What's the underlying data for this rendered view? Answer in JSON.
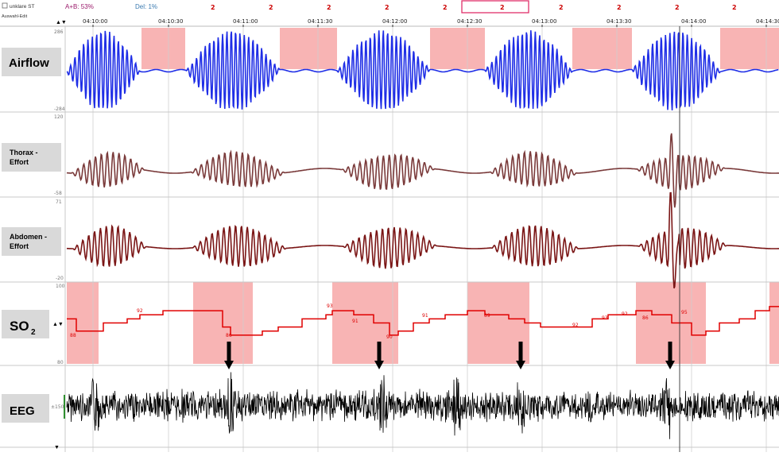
{
  "header": {
    "checkbox_label": "unklare ST",
    "edit_label": "Auswahl-Edit",
    "nav_arrows": "▲▼",
    "ab_stat": "A+B: 53%",
    "del_stat": "Del: 1%",
    "scores": [
      "2",
      "2",
      "2",
      "2",
      "2",
      "2",
      "2",
      "2",
      "2",
      "2",
      "2"
    ]
  },
  "time_axis": {
    "ticks": [
      "04:10:00",
      "04:10:30",
      "04:11:00",
      "04:11:30",
      "04:12:00",
      "04:12:30",
      "04:13:00",
      "04:13:30",
      "04:14:00",
      "04:14:30"
    ]
  },
  "channels": {
    "airflow": {
      "label": "Airflow",
      "scale_top": "286",
      "scale_bottom": "-284",
      "color": "#1f2ee6"
    },
    "thorax": {
      "label_line1": "Thorax -",
      "label_line2": "Effort",
      "scale_top": "120",
      "scale_bottom": "-58",
      "color": "#7a3a3a"
    },
    "abdomen": {
      "label_line1": "Abdomen -",
      "label_line2": "Effort",
      "scale_top": "71",
      "scale_bottom": "-20",
      "color": "#7a1515"
    },
    "so2": {
      "label": "SO",
      "label_sub": "2",
      "scale_top": "100",
      "scale_bottom": "80",
      "arrows": "▲▼",
      "color": "#e00000",
      "values": [
        "88",
        "92",
        "86",
        "93",
        "91",
        "90",
        "91",
        "89",
        "92",
        "93",
        "92",
        "86",
        "95"
      ]
    },
    "eeg": {
      "label": "EEG",
      "scale": "±150",
      "color": "#000000"
    }
  },
  "colors": {
    "event_fill": "#f8b4b4",
    "grid": "#cfcfcf",
    "label_bg": "#d9d9d9"
  }
}
